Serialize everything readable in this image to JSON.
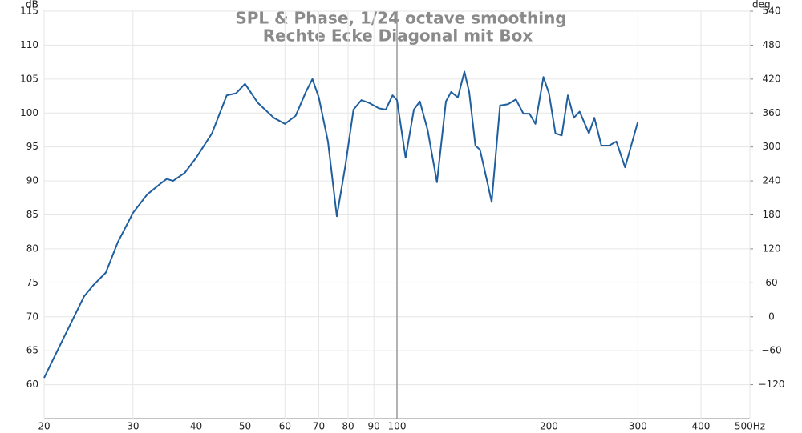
{
  "chart_data": {
    "type": "line",
    "title": "SPL & Phase, 1/24 octave smoothing",
    "subtitle": "Rechte Ecke Diagonal mit Box",
    "y_label": "dB",
    "y2_label": "deg",
    "x_scale": "log",
    "grid": true,
    "cursor": 100,
    "xlim": [
      20,
      500
    ],
    "xticks": [
      20,
      30,
      40,
      50,
      60,
      70,
      80,
      90,
      100,
      200,
      300,
      400,
      {
        "value": 500,
        "label": "500Hz"
      }
    ],
    "ylim": [
      55,
      115
    ],
    "yticks": [
      60,
      65,
      70,
      75,
      80,
      85,
      90,
      95,
      100,
      105,
      110,
      115
    ],
    "y2lim": [
      -180,
      540
    ],
    "y2ticks": [
      {
        "value": -120,
        "label": "−120"
      },
      {
        "value": -60,
        "label": "−60"
      },
      0,
      60,
      120,
      180,
      240,
      300,
      360,
      420,
      480,
      540
    ],
    "series": [
      {
        "color": "#1f5f9f",
        "x": [
          20,
          22,
          24,
          25,
          26.5,
          28,
          30,
          32,
          34,
          35,
          36,
          38,
          40,
          43,
          46,
          48,
          50,
          53,
          57,
          60,
          63,
          66,
          68,
          70,
          73,
          76,
          79,
          82,
          85,
          88,
          92,
          95,
          98,
          100,
          104,
          108,
          111,
          115,
          120,
          125,
          128,
          132,
          136,
          139,
          143,
          146,
          151,
          154,
          160,
          166,
          172,
          178,
          183,
          188,
          195,
          200,
          206,
          212,
          218,
          224,
          230,
          240,
          246,
          254,
          263,
          272,
          283,
          300
        ],
        "values": [
          61,
          67.3,
          73,
          74.6,
          76.5,
          81,
          85.3,
          88,
          89.6,
          90.3,
          90,
          91.2,
          93.4,
          97,
          102.6,
          102.9,
          104.3,
          101.5,
          99.3,
          98.4,
          99.6,
          103.1,
          105,
          102.3,
          95.8,
          84.8,
          92.2,
          100.5,
          101.9,
          101.5,
          100.7,
          100.5,
          102.6,
          101.9,
          93.4,
          100.5,
          101.7,
          97.5,
          89.8,
          101.7,
          103.1,
          102.3,
          106.1,
          103.1,
          95.2,
          94.6,
          89.8,
          86.9,
          101.1,
          101.3,
          102,
          99.9,
          99.9,
          98.4,
          105.3,
          102.9,
          97,
          96.7,
          102.6,
          99.3,
          100.2,
          97,
          99.3,
          95.2,
          95.2,
          95.8,
          92,
          98.7
        ]
      }
    ]
  }
}
